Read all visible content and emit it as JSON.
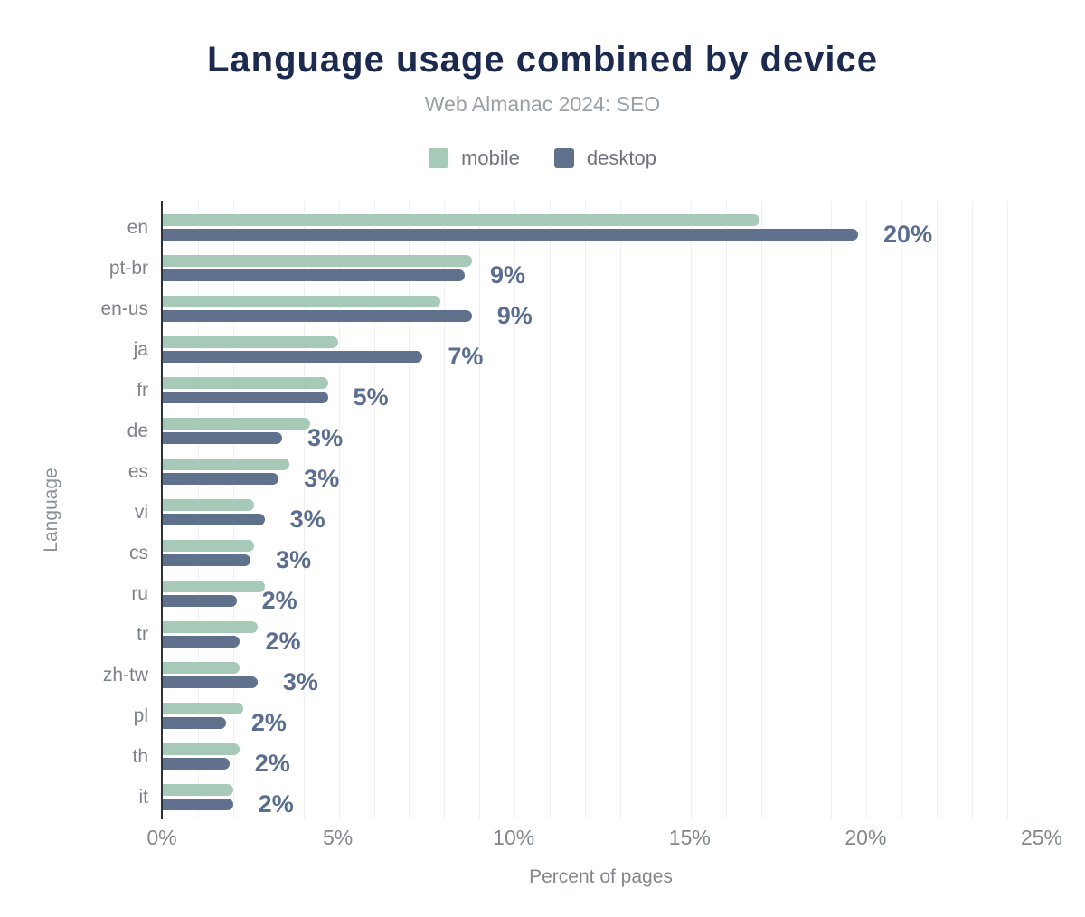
{
  "header": {
    "title": "Language usage combined by device",
    "subtitle": "Web Almanac 2024: SEO"
  },
  "legend": {
    "items": [
      {
        "label": "mobile",
        "color": "#a7c9b7"
      },
      {
        "label": "desktop",
        "color": "#5f718d"
      }
    ]
  },
  "chart_data": {
    "type": "bar",
    "orientation": "horizontal",
    "title": "Language usage combined by device",
    "subtitle": "Web Almanac 2024: SEO",
    "xlabel": "Percent of pages",
    "ylabel": "Language",
    "xlim": [
      0,
      25
    ],
    "x_ticks": [
      0,
      5,
      10,
      15,
      20,
      25
    ],
    "x_tick_labels": [
      "0%",
      "5%",
      "10%",
      "15%",
      "20%",
      "25%"
    ],
    "grid": "vertical gridlines every 1%",
    "legend_position": "top",
    "categories": [
      "en",
      "pt-br",
      "en-us",
      "ja",
      "fr",
      "de",
      "es",
      "vi",
      "cs",
      "ru",
      "tr",
      "zh-tw",
      "pl",
      "th",
      "it"
    ],
    "series": [
      {
        "name": "mobile",
        "color": "#a7c9b7",
        "values": [
          17.0,
          8.8,
          7.9,
          5.0,
          4.7,
          4.2,
          3.6,
          2.6,
          2.6,
          2.9,
          2.7,
          2.2,
          2.3,
          2.2,
          2.0
        ]
      },
      {
        "name": "desktop",
        "color": "#5f718d",
        "values": [
          19.8,
          8.6,
          8.8,
          7.4,
          4.7,
          3.4,
          3.3,
          2.9,
          2.5,
          2.1,
          2.2,
          2.7,
          1.8,
          1.9,
          2.0
        ]
      }
    ],
    "bar_labels": {
      "anchored_to": "desktop",
      "values": [
        "20%",
        "9%",
        "9%",
        "7%",
        "5%",
        "3%",
        "3%",
        "3%",
        "3%",
        "2%",
        "2%",
        "3%",
        "2%",
        "2%",
        "2%"
      ]
    },
    "accent_colors": {
      "title": "#1c2a4f",
      "value_label": "#5b6e90",
      "axis_line": "#2c323d",
      "gridline": "#f0f0f0",
      "muted_text": "#82878f"
    }
  }
}
